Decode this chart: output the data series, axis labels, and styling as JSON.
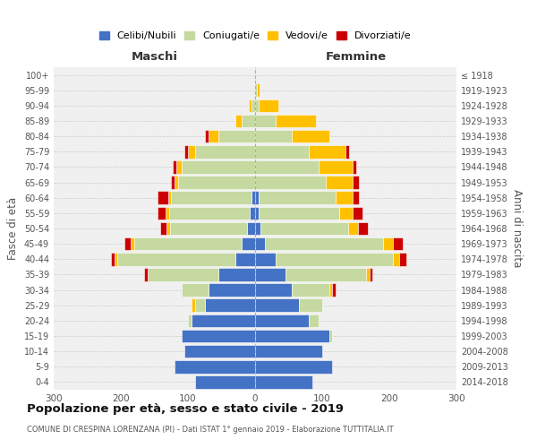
{
  "age_groups": [
    "0-4",
    "5-9",
    "10-14",
    "15-19",
    "20-24",
    "25-29",
    "30-34",
    "35-39",
    "40-44",
    "45-49",
    "50-54",
    "55-59",
    "60-64",
    "65-69",
    "70-74",
    "75-79",
    "80-84",
    "85-89",
    "90-94",
    "95-99",
    "100+"
  ],
  "birth_years": [
    "2014-2018",
    "2009-2013",
    "2004-2008",
    "1999-2003",
    "1994-1998",
    "1989-1993",
    "1984-1988",
    "1979-1983",
    "1974-1978",
    "1969-1973",
    "1964-1968",
    "1959-1963",
    "1954-1958",
    "1949-1953",
    "1944-1948",
    "1939-1943",
    "1934-1938",
    "1929-1933",
    "1924-1928",
    "1919-1923",
    "≤ 1918"
  ],
  "males": {
    "celibi": [
      90,
      120,
      105,
      110,
      95,
      75,
      70,
      55,
      30,
      20,
      12,
      8,
      5,
      0,
      0,
      0,
      0,
      0,
      0,
      0,
      0
    ],
    "coniugati": [
      0,
      0,
      0,
      0,
      5,
      15,
      40,
      105,
      175,
      160,
      115,
      120,
      120,
      115,
      110,
      90,
      55,
      20,
      5,
      2,
      0
    ],
    "vedovi": [
      0,
      0,
      0,
      0,
      0,
      5,
      0,
      0,
      5,
      5,
      5,
      5,
      5,
      5,
      8,
      10,
      15,
      10,
      5,
      0,
      0
    ],
    "divorziati": [
      0,
      0,
      0,
      0,
      0,
      0,
      0,
      5,
      5,
      10,
      10,
      12,
      15,
      5,
      5,
      5,
      5,
      0,
      0,
      0,
      0
    ]
  },
  "females": {
    "nubili": [
      85,
      115,
      100,
      110,
      80,
      65,
      55,
      45,
      30,
      15,
      8,
      5,
      5,
      0,
      0,
      0,
      0,
      0,
      0,
      0,
      0
    ],
    "coniugate": [
      0,
      0,
      0,
      5,
      15,
      35,
      55,
      120,
      175,
      175,
      130,
      120,
      115,
      105,
      95,
      80,
      55,
      30,
      5,
      2,
      0
    ],
    "vedove": [
      0,
      0,
      0,
      0,
      0,
      0,
      5,
      5,
      10,
      15,
      15,
      20,
      25,
      40,
      50,
      55,
      55,
      60,
      30,
      5,
      0
    ],
    "divorziate": [
      0,
      0,
      0,
      0,
      0,
      0,
      5,
      5,
      10,
      15,
      15,
      15,
      10,
      10,
      5,
      5,
      0,
      0,
      0,
      0,
      0
    ]
  },
  "colors": {
    "celibi": "#4472c4",
    "coniugati": "#c5d9a0",
    "vedovi": "#ffc000",
    "divorziati": "#cc0000"
  },
  "title": "Popolazione per età, sesso e stato civile - 2019",
  "subtitle": "COMUNE DI CRESPINA LORENZANA (PI) - Dati ISTAT 1° gennaio 2019 - Elaborazione TUTTITALIA.IT",
  "xlabel_left": "Maschi",
  "xlabel_right": "Femmine",
  "ylabel_left": "Fasce di età",
  "ylabel_right": "Anni di nascita",
  "legend_labels": [
    "Celibi/Nubili",
    "Coniugati/e",
    "Vedovi/e",
    "Divorziati/e"
  ],
  "xlim": 300,
  "bg_color": "#f0f0f0"
}
